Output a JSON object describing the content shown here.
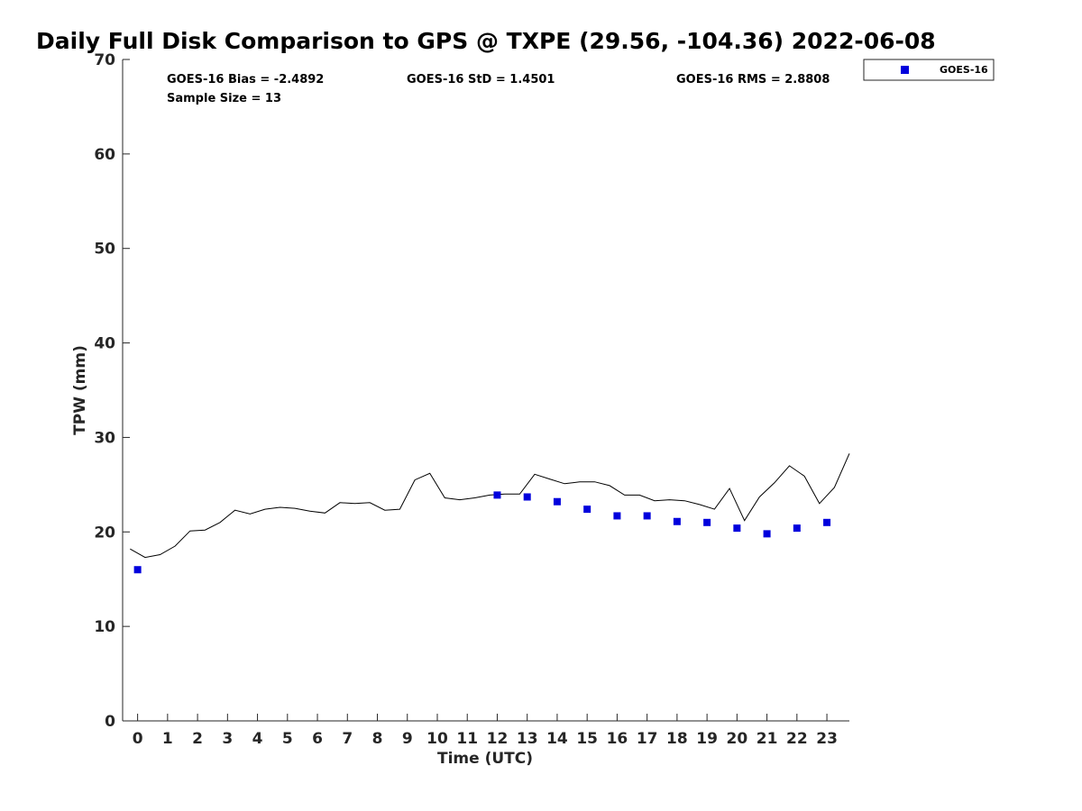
{
  "chart_data": {
    "type": "scatter",
    "title": "Daily Full Disk Comparison to GPS @ TXPE (29.56, -104.36) 2022-06-08",
    "xlabel": "Time (UTC)",
    "ylabel": "TPW (mm)",
    "xlim": [
      -0.5,
      23.75
    ],
    "ylim": [
      0,
      70
    ],
    "x_ticks": [
      "0",
      "1",
      "2",
      "3",
      "4",
      "5",
      "6",
      "7",
      "8",
      "9",
      "10",
      "11",
      "12",
      "13",
      "14",
      "15",
      "16",
      "17",
      "18",
      "19",
      "20",
      "21",
      "22",
      "23"
    ],
    "y_ticks": [
      "0",
      "10",
      "20",
      "30",
      "40",
      "50",
      "60",
      "70"
    ],
    "grid": false,
    "legend": {
      "placement": "top-right",
      "entries": [
        "GOES-16"
      ]
    },
    "stats": {
      "bias": "GOES-16 Bias = -2.4892",
      "std": "GOES-16 StD = 1.4501",
      "rms": "GOES-16 RMS = 2.8808",
      "sample": "Sample Size = 13"
    },
    "series": [
      {
        "name": "GOES-16",
        "type": "scatter",
        "color": "#0000dd",
        "x": [
          0,
          12,
          13,
          14,
          15,
          16,
          17,
          18,
          19,
          20,
          21,
          22,
          23
        ],
        "y": [
          16.0,
          23.9,
          23.7,
          23.2,
          22.4,
          21.7,
          21.7,
          21.1,
          21.0,
          20.4,
          19.8,
          20.4,
          21.0
        ]
      },
      {
        "type": "line",
        "color": "#000000",
        "x": [
          -0.25,
          0.25,
          0.75,
          1.25,
          1.75,
          2.25,
          2.75,
          3.25,
          3.75,
          4.25,
          4.75,
          5.25,
          5.75,
          6.25,
          6.75,
          7.25,
          7.75,
          8.25,
          8.75,
          9.25,
          9.75,
          10.25,
          10.75,
          11.25,
          11.75,
          12.25,
          12.75,
          13.25,
          13.75,
          14.25,
          14.75,
          15.25,
          15.75,
          16.25,
          16.75,
          17.25,
          17.75,
          18.25,
          18.75,
          19.25,
          19.75,
          20.25,
          20.75,
          21.25,
          21.75,
          22.25,
          22.75,
          23.25,
          23.75
        ],
        "y": [
          18.2,
          17.3,
          17.6,
          18.5,
          20.1,
          20.2,
          21.0,
          22.3,
          21.9,
          22.4,
          22.6,
          22.5,
          22.2,
          22.0,
          23.1,
          23.0,
          23.1,
          22.3,
          22.4,
          25.5,
          26.2,
          23.6,
          23.4,
          23.6,
          23.9,
          24.0,
          24.0,
          26.1,
          25.6,
          25.1,
          25.3,
          25.3,
          24.9,
          23.9,
          23.9,
          23.3,
          23.4,
          23.3,
          22.9,
          22.4,
          24.6,
          21.2,
          23.7,
          25.2,
          27.0,
          25.9,
          23.0,
          24.7,
          28.3
        ]
      }
    ]
  }
}
